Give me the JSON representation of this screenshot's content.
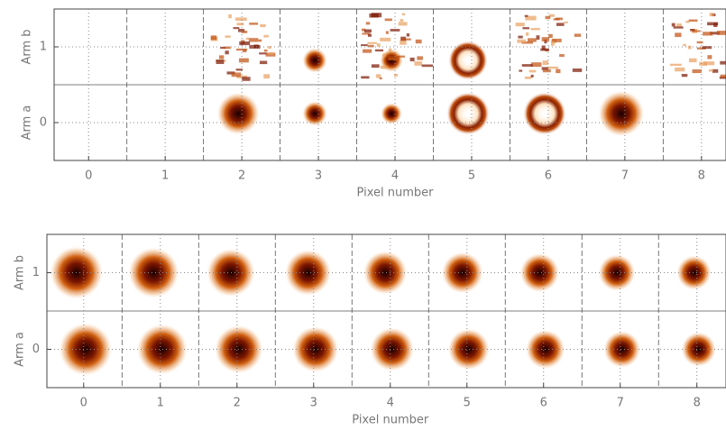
{
  "chart_data": [
    {
      "type": "image-grid",
      "xlabel": "Pixel number",
      "row_labels": [
        "Arm a",
        "Arm b"
      ],
      "xlim": [
        -0.45,
        8.32
      ],
      "xticks": [
        0,
        1,
        2,
        3,
        4,
        5,
        6,
        7,
        8
      ],
      "ylim": [
        -0.5,
        1.5
      ],
      "yticks": [
        0,
        1
      ],
      "grid": true
    },
    {
      "type": "image-grid",
      "xlabel": "Pixel number",
      "row_labels": [
        "Arm a",
        "Arm b"
      ],
      "xlim": [
        -0.48,
        8.38
      ],
      "xticks": [
        0,
        1,
        2,
        3,
        4,
        5,
        6,
        7,
        8
      ],
      "ylim": [
        -0.5,
        1.5
      ],
      "yticks": [
        0,
        1
      ],
      "grid": true
    }
  ]
}
